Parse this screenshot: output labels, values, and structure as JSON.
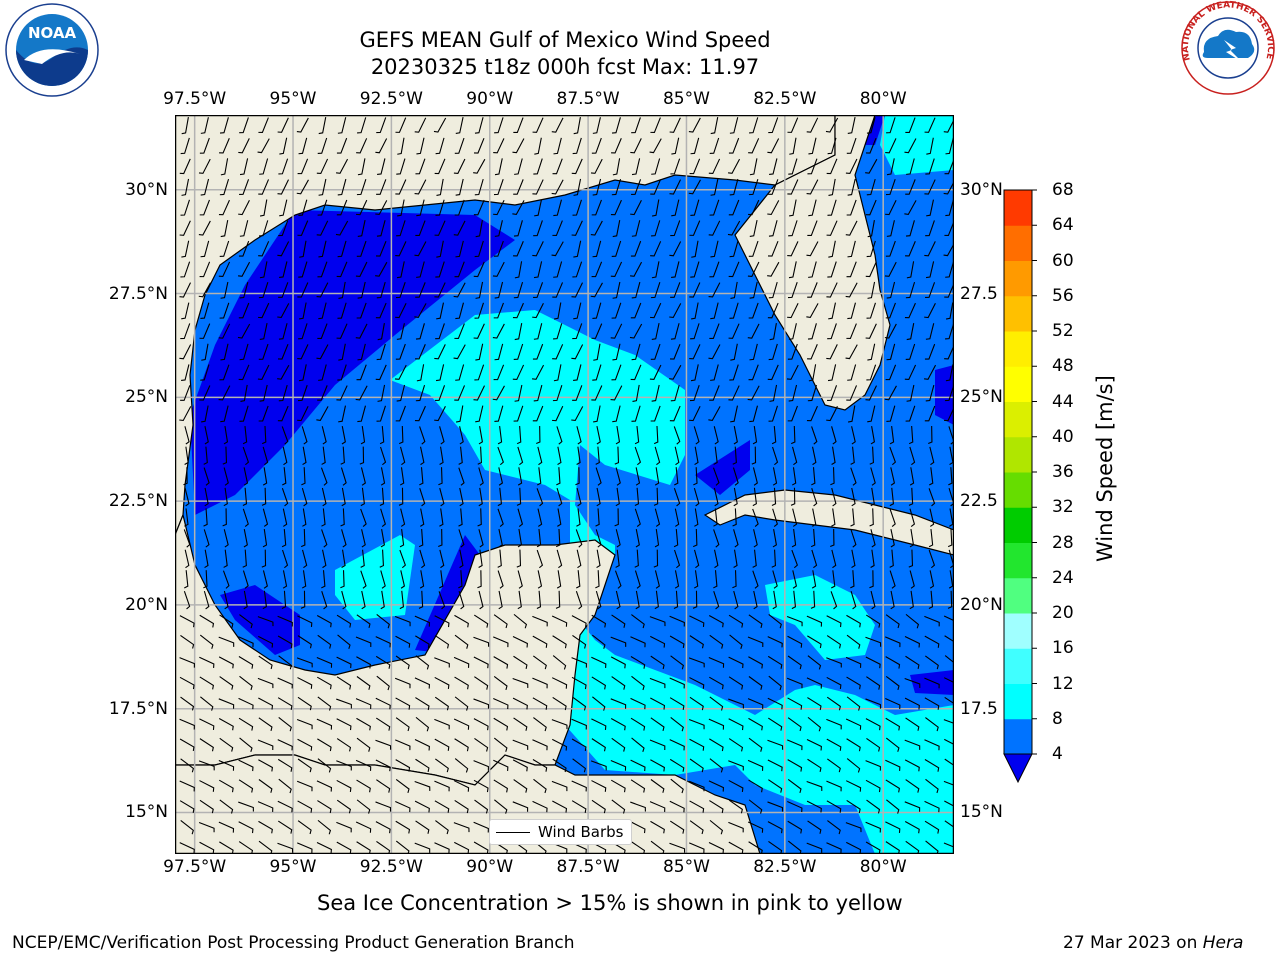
{
  "header": {
    "title_line1": "GEFS MEAN Gulf of Mexico Wind Speed",
    "title_line2": "20230325 t18z 000h fcst   Max: 11.97"
  },
  "logos": {
    "noaa_text": "NOAA",
    "nws_ring_text": "NATIONAL WEATHER SERVICE"
  },
  "map": {
    "lon_ticks": [
      {
        "lon": -97.5,
        "label": "97.5°W"
      },
      {
        "lon": -95,
        "label": "95°W"
      },
      {
        "lon": -92.5,
        "label": "92.5°W"
      },
      {
        "lon": -90,
        "label": "90°W"
      },
      {
        "lon": -87.5,
        "label": "87.5°W"
      },
      {
        "lon": -85,
        "label": "85°W"
      },
      {
        "lon": -82.5,
        "label": "82.5°W"
      },
      {
        "lon": -80,
        "label": "80°W"
      }
    ],
    "lat_ticks": [
      {
        "lat": 30,
        "label": "30°N"
      },
      {
        "lat": 27.5,
        "label": "27.5°N"
      },
      {
        "lat": 25,
        "label": "25°N"
      },
      {
        "lat": 22.5,
        "label": "22.5°N"
      },
      {
        "lat": 20,
        "label": "20°N"
      },
      {
        "lat": 17.5,
        "label": "17.5°N"
      },
      {
        "lat": 15,
        "label": "15°N"
      }
    ],
    "lat_ticks_right": [
      {
        "lat": 30,
        "label": "30°N"
      },
      {
        "lat": 27.5,
        "label": "27.5"
      },
      {
        "lat": 25,
        "label": "25°N"
      },
      {
        "lat": 22.5,
        "label": "22.5"
      },
      {
        "lat": 20,
        "label": "20°N"
      },
      {
        "lat": 17.5,
        "label": "17.5"
      },
      {
        "lat": 15,
        "label": "15°N"
      }
    ],
    "extent": {
      "lon_min": -98,
      "lon_max": -78.2,
      "lat_min": 14,
      "lat_max": 31.8
    },
    "legend_label": "Wind Barbs",
    "colors": {
      "land": "#efedde",
      "grid": "#b3b3b3",
      "speed_4_8": "#0073ff",
      "speed_below_4": "#0000ee",
      "speed_8_12": "#00ffff",
      "speed_8_12_alt": "#00e8ff",
      "deep_blue": "#0b1f94"
    }
  },
  "colorbar": {
    "label": "Wind Speed [m/s]",
    "levels": [
      4,
      8,
      12,
      16,
      20,
      24,
      28,
      32,
      36,
      40,
      44,
      48,
      52,
      56,
      60,
      64,
      68
    ],
    "colors": [
      "#0073ff",
      "#00ffff",
      "#40ffff",
      "#a0ffff",
      "#50ff80",
      "#22e62e",
      "#00cc00",
      "#66dd00",
      "#b0e600",
      "#dbef00",
      "#ffff00",
      "#ffee00",
      "#ffc000",
      "#ff9a00",
      "#ff6e00",
      "#ff3a00"
    ],
    "under_color": "#0000ee"
  },
  "caption": "Sea Ice Concentration > 15% is shown in pink to yellow",
  "footer": {
    "left": "NCEP/EMC/Verification Post Processing Product Generation Branch",
    "right_date": "27 Mar 2023 on ",
    "right_machine": "Hera"
  }
}
